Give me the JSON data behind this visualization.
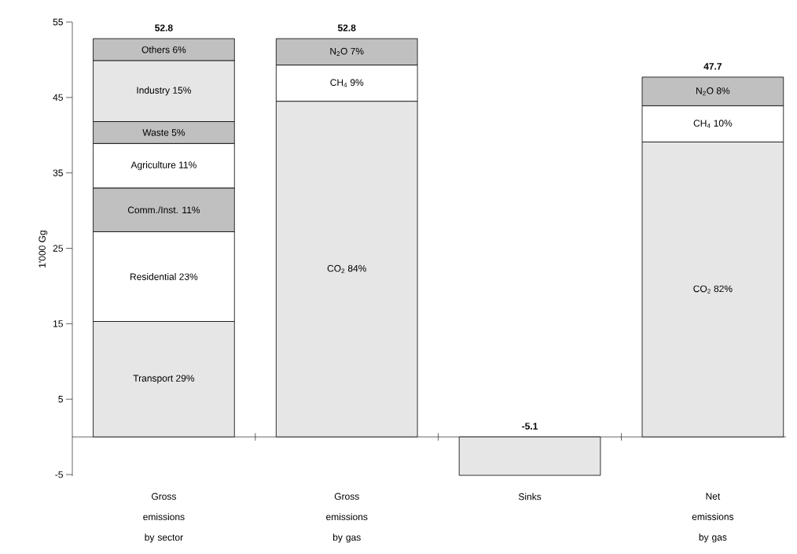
{
  "chart_data": {
    "type": "bar",
    "stacked": true,
    "ylabel": "1'000 Gg",
    "categories": [
      "Gross emissions by sector",
      "Gross emissions by gas",
      "Sinks",
      "Net emissions by gas"
    ],
    "ylim": [
      -5.2,
      55
    ],
    "yticks": [
      -5,
      5,
      15,
      25,
      35,
      45,
      55
    ],
    "totals": [
      "52.8",
      "52.8",
      "-5.1",
      "47.7"
    ],
    "series": [
      {
        "values": [
          15.3,
          44.5,
          -5.1,
          39.1
        ],
        "colors": [
          "#e6e6e6",
          "#e6e6e6",
          "#e6e6e6",
          "#e6e6e6"
        ]
      },
      {
        "values": [
          11.9,
          4.8,
          null,
          4.8
        ],
        "colors": [
          "#ffffff",
          "#ffffff",
          null,
          "#ffffff"
        ]
      },
      {
        "values": [
          5.8,
          3.5,
          null,
          3.8
        ],
        "colors": [
          "#c0c0c0",
          "#c0c0c0",
          null,
          "#c0c0c0"
        ]
      },
      {
        "values": [
          5.9,
          null,
          null,
          null
        ],
        "colors": [
          "#ffffff",
          null,
          null,
          null
        ]
      },
      {
        "values": [
          2.9,
          null,
          null,
          null
        ],
        "colors": [
          "#c0c0c0",
          null,
          null,
          null
        ]
      },
      {
        "values": [
          8.1,
          null,
          null,
          null
        ],
        "colors": [
          "#e6e6e6",
          null,
          null,
          null
        ]
      },
      {
        "values": [
          2.9,
          null,
          null,
          null
        ],
        "colors": [
          "#c0c0c0",
          null,
          null,
          null
        ]
      }
    ],
    "annotations": [
      "Transport 29%",
      "Residential 23%",
      "Comm./Inst. 11%",
      "Agriculture 11%",
      "Waste 5%",
      "Industry 15%",
      "Others 6%",
      "CO$_{2}$ 84%",
      "CH$_{4}$ 9%",
      "N$_{2}$O 7%",
      "CO$_{2}$ 82%",
      "CH$_{4}$ 10%",
      "N$_{2}$O 8%"
    ]
  }
}
